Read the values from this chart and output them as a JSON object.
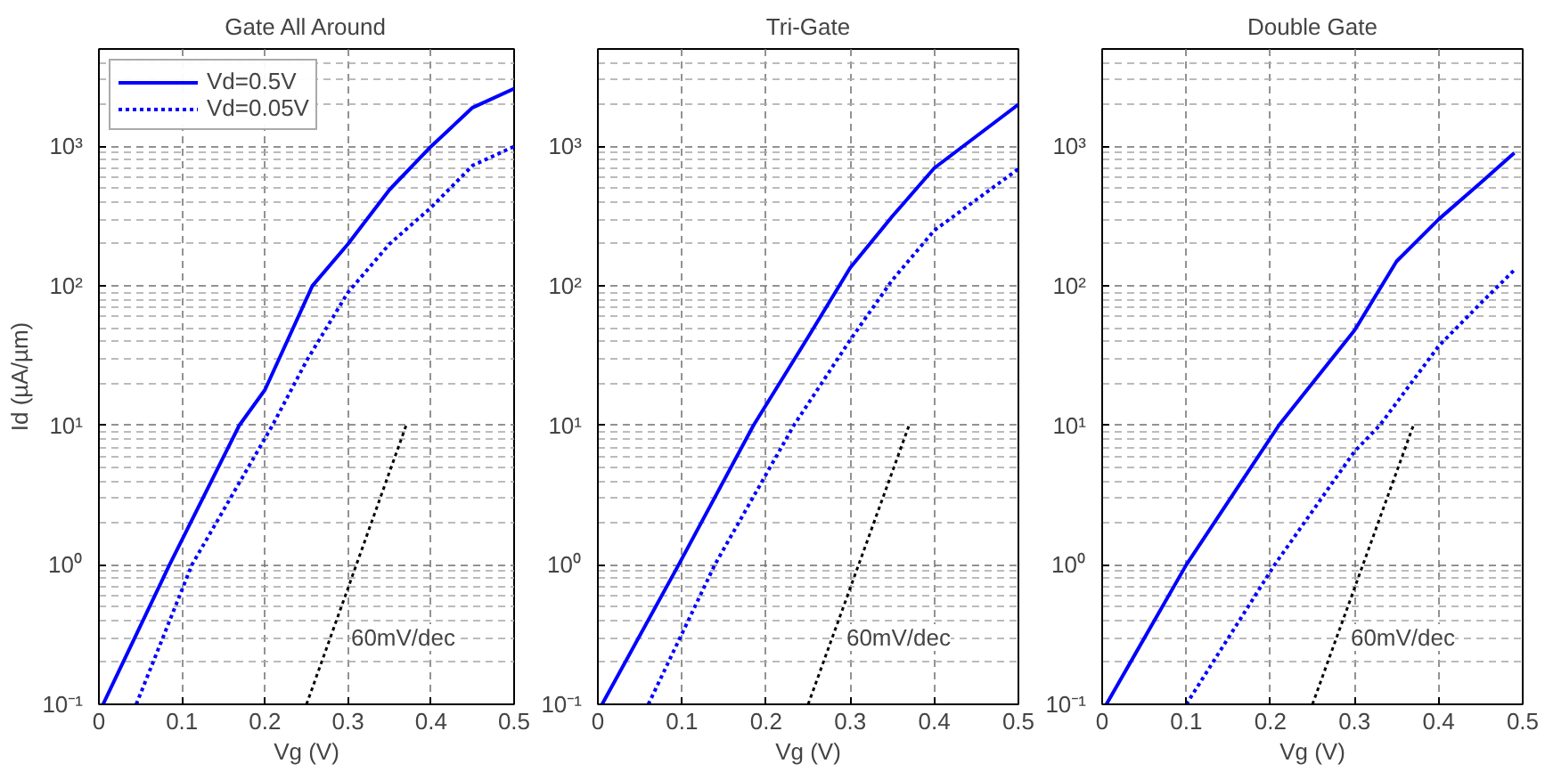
{
  "chart_data": [
    {
      "type": "line",
      "title": "Gate All Around",
      "xlabel": "Vg (V)",
      "ylabel": "Id (µA/µm)",
      "log": "y",
      "grid": true,
      "legend": "top left",
      "xlim": [
        0,
        0.5
      ],
      "ylim": [
        0.1,
        5000
      ],
      "xticks": [
        0,
        0.1,
        0.2,
        0.3,
        0.4,
        0.5
      ],
      "yticks": [
        {
          "value": 0.1,
          "label": "10⁻¹"
        },
        {
          "value": 1,
          "label": "10⁰"
        },
        {
          "value": 10,
          "label": "10¹"
        },
        {
          "value": 100,
          "label": "10²"
        },
        {
          "value": 1000,
          "label": "10³"
        }
      ],
      "series": [
        {
          "name": "Vd=0.5V",
          "color": "#0000ff",
          "line_style": "solid",
          "x": [
            0.005,
            0.085,
            0.169,
            0.2,
            0.257,
            0.3,
            0.35,
            0.4,
            0.45,
            0.5
          ],
          "values": [
            0.1,
            1,
            10,
            18,
            100,
            200,
            490,
            1000,
            1900,
            2600
          ]
        },
        {
          "name": "Vd=0.05V",
          "color": "#0000ff",
          "line_style": "dotted",
          "x": [
            0.045,
            0.112,
            0.209,
            0.25,
            0.3,
            0.35,
            0.4,
            0.45,
            0.5
          ],
          "values": [
            0.1,
            1,
            10,
            29,
            90,
            200,
            365,
            730,
            1000
          ]
        },
        {
          "color": "#000000",
          "line_style": "dotted",
          "x": [
            0.25,
            0.37
          ],
          "values": [
            0.1,
            10
          ]
        }
      ],
      "annotations": [
        "60mV/dec"
      ]
    },
    {
      "type": "line",
      "title": "Tri-Gate",
      "xlabel": "Vg (V)",
      "log": "y",
      "grid": true,
      "xlim": [
        0,
        0.5
      ],
      "ylim": [
        0.1,
        5000
      ],
      "xticks": [
        0,
        0.1,
        0.2,
        0.3,
        0.4,
        0.5
      ],
      "yticks": [
        {
          "value": 0.1,
          "label": "10⁻¹"
        },
        {
          "value": 1,
          "label": "10⁰"
        },
        {
          "value": 10,
          "label": "10¹"
        },
        {
          "value": 100,
          "label": "10²"
        },
        {
          "value": 1000,
          "label": "10³"
        }
      ],
      "series": [
        {
          "color": "#0000ff",
          "line_style": "solid",
          "x": [
            0.005,
            0.096,
            0.185,
            0.25,
            0.3,
            0.35,
            0.4,
            0.5
          ],
          "values": [
            0.1,
            1,
            10,
            43,
            135,
            315,
            700,
            2000
          ]
        },
        {
          "color": "#0000ff",
          "line_style": "dotted",
          "x": [
            0.06,
            0.139,
            0.233,
            0.3,
            0.35,
            0.4,
            0.5
          ],
          "values": [
            0.1,
            1,
            10,
            41,
            110,
            250,
            690
          ]
        },
        {
          "color": "#000000",
          "line_style": "dotted",
          "x": [
            0.25,
            0.37
          ],
          "values": [
            0.1,
            10
          ]
        }
      ],
      "annotations": [
        "60mV/dec"
      ]
    },
    {
      "type": "line",
      "title": "Double Gate",
      "xlabel": "Vg (V)",
      "log": "y",
      "grid": true,
      "xlim": [
        0,
        0.5
      ],
      "ylim": [
        0.1,
        5000
      ],
      "xticks": [
        0,
        0.1,
        0.2,
        0.3,
        0.4,
        0.5
      ],
      "yticks": [
        {
          "value": 0.1,
          "label": "10⁻¹"
        },
        {
          "value": 1,
          "label": "10⁰"
        },
        {
          "value": 10,
          "label": "10¹"
        },
        {
          "value": 100,
          "label": "10²"
        },
        {
          "value": 1000,
          "label": "10³"
        }
      ],
      "series": [
        {
          "color": "#0000ff",
          "line_style": "solid",
          "x": [
            0.005,
            0.1,
            0.21,
            0.3,
            0.35,
            0.4,
            0.45,
            0.49
          ],
          "values": [
            0.1,
            1,
            10,
            48,
            150,
            300,
            550,
            900
          ]
        },
        {
          "color": "#0000ff",
          "line_style": "dotted",
          "x": [
            0.1,
            0.205,
            0.3,
            0.33,
            0.4,
            0.45,
            0.49
          ],
          "values": [
            0.1,
            1,
            6.5,
            10,
            37,
            75,
            130
          ]
        },
        {
          "color": "#000000",
          "line_style": "dotted",
          "x": [
            0.25,
            0.37
          ],
          "values": [
            0.1,
            10
          ]
        }
      ],
      "annotations": [
        "60mV/dec"
      ]
    }
  ]
}
